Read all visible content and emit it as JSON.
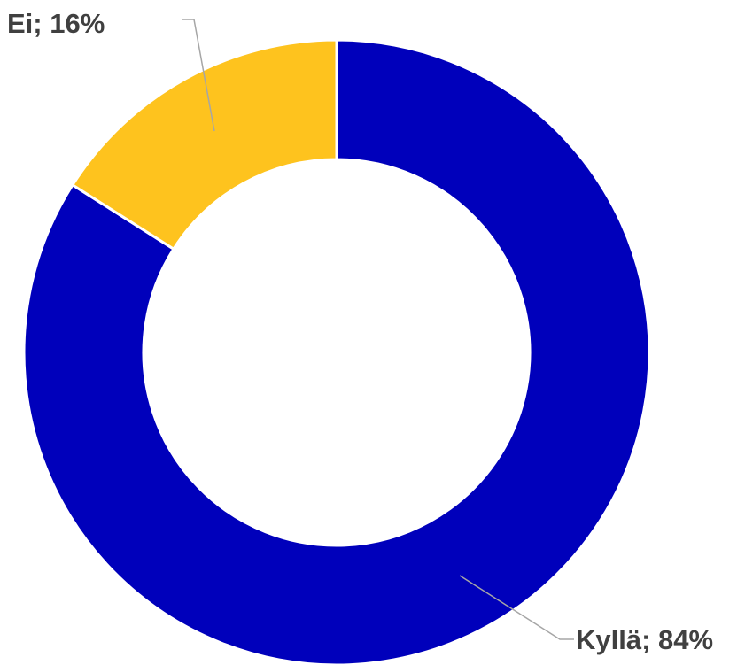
{
  "chart_data": {
    "type": "pie",
    "variant": "donut",
    "title": "",
    "categories": [
      "Kyllä",
      "Ei"
    ],
    "values": [
      84,
      16
    ],
    "unit": "%",
    "colors": [
      "#0000bb",
      "#fec31e"
    ],
    "labels": [
      "Kyllä; 84%",
      "Ei; 16%"
    ],
    "legend": "none",
    "start_angle_deg": 0,
    "direction": "clockwise"
  }
}
